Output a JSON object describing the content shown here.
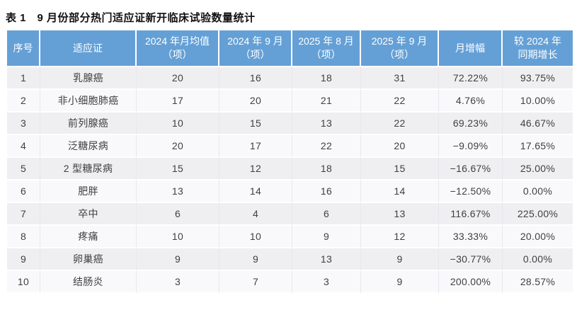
{
  "title": "表 1　9 月份部分热门适应证新开临床试验数量统计",
  "colors": {
    "header_bg": "#64a0d6",
    "header_text": "#ffffff",
    "row_odd_bg": "#efeff1",
    "row_even_bg": "#f9f9fb",
    "cell_text": "#404040",
    "separator": "#e8e8ec"
  },
  "table": {
    "columns": [
      {
        "lines": [
          "序号"
        ]
      },
      {
        "lines": [
          "适应证"
        ]
      },
      {
        "lines": [
          "2024 年月均值",
          "（项）"
        ]
      },
      {
        "lines": [
          "2024 年 9 月",
          "（项）"
        ]
      },
      {
        "lines": [
          "2025 年 8 月",
          "（项）"
        ]
      },
      {
        "lines": [
          "2025 年 9 月",
          "（项）"
        ]
      },
      {
        "lines": [
          "月增幅"
        ]
      },
      {
        "lines": [
          "较 2024 年",
          "同期增长"
        ]
      }
    ],
    "rows": [
      [
        "1",
        "乳腺癌",
        "20",
        "16",
        "18",
        "31",
        "72.22%",
        "93.75%"
      ],
      [
        "2",
        "非小细胞肺癌",
        "17",
        "20",
        "21",
        "22",
        "4.76%",
        "10.00%"
      ],
      [
        "3",
        "前列腺癌",
        "10",
        "15",
        "13",
        "22",
        "69.23%",
        "46.67%"
      ],
      [
        "4",
        "泛糖尿病",
        "20",
        "17",
        "22",
        "20",
        "−9.09%",
        "17.65%"
      ],
      [
        "5",
        "2 型糖尿病",
        "15",
        "12",
        "18",
        "15",
        "−16.67%",
        "25.00%"
      ],
      [
        "6",
        "肥胖",
        "13",
        "14",
        "16",
        "14",
        "−12.50%",
        "0.00%"
      ],
      [
        "7",
        "卒中",
        "6",
        "4",
        "6",
        "13",
        "116.67%",
        "225.00%"
      ],
      [
        "8",
        "疼痛",
        "10",
        "10",
        "9",
        "12",
        "33.33%",
        "20.00%"
      ],
      [
        "9",
        "卵巢癌",
        "9",
        "9",
        "13",
        "9",
        "−30.77%",
        "0.00%"
      ],
      [
        "10",
        "结肠炎",
        "3",
        "7",
        "3",
        "9",
        "200.00%",
        "28.57%"
      ]
    ]
  },
  "chart_data": {
    "type": "table",
    "title": "表 1　9 月份部分热门适应证新开临床试验数量统计",
    "columns": [
      "序号",
      "适应证",
      "2024 年月均值（项）",
      "2024 年 9 月（项）",
      "2025 年 8 月（项）",
      "2025 年 9 月（项）",
      "月增幅",
      "较 2024 年同期增长"
    ],
    "rows": [
      [
        "1",
        "乳腺癌",
        20,
        16,
        18,
        31,
        "72.22%",
        "93.75%"
      ],
      [
        "2",
        "非小细胞肺癌",
        17,
        20,
        21,
        22,
        "4.76%",
        "10.00%"
      ],
      [
        "3",
        "前列腺癌",
        10,
        15,
        13,
        22,
        "69.23%",
        "46.67%"
      ],
      [
        "4",
        "泛糖尿病",
        20,
        17,
        22,
        20,
        "−9.09%",
        "17.65%"
      ],
      [
        "5",
        "2 型糖尿病",
        15,
        12,
        18,
        15,
        "−16.67%",
        "25.00%"
      ],
      [
        "6",
        "肥胖",
        13,
        14,
        16,
        14,
        "−12.50%",
        "0.00%"
      ],
      [
        "7",
        "卒中",
        6,
        4,
        6,
        13,
        "116.67%",
        "225.00%"
      ],
      [
        "8",
        "疼痛",
        10,
        10,
        9,
        12,
        "33.33%",
        "20.00%"
      ],
      [
        "9",
        "卵巢癌",
        9,
        9,
        13,
        9,
        "−30.77%",
        "0.00%"
      ],
      [
        "10",
        "结肠炎",
        3,
        7,
        3,
        9,
        "200.00%",
        "28.57%"
      ]
    ]
  }
}
